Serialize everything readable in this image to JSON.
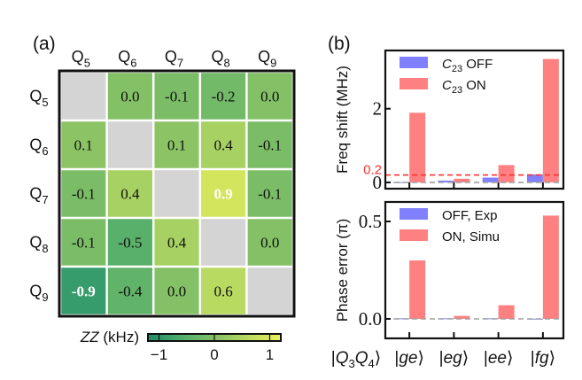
{
  "panel_labels": {
    "a": "(a)",
    "b": "(b)"
  },
  "chart_data": [
    {
      "type": "heatmap",
      "panel": "(a)",
      "title": "",
      "x_labels": [
        {
          "base": "Q",
          "sub": "5"
        },
        {
          "base": "Q",
          "sub": "6"
        },
        {
          "base": "Q",
          "sub": "7"
        },
        {
          "base": "Q",
          "sub": "8"
        },
        {
          "base": "Q",
          "sub": "9"
        }
      ],
      "y_labels": [
        {
          "base": "Q",
          "sub": "5"
        },
        {
          "base": "Q",
          "sub": "6"
        },
        {
          "base": "Q",
          "sub": "7"
        },
        {
          "base": "Q",
          "sub": "8"
        },
        {
          "base": "Q",
          "sub": "9"
        }
      ],
      "values": [
        [
          null,
          0.0,
          -0.1,
          -0.2,
          0.0
        ],
        [
          0.1,
          null,
          0.1,
          0.4,
          -0.1
        ],
        [
          -0.1,
          0.4,
          null,
          0.9,
          -0.1
        ],
        [
          -0.1,
          -0.5,
          0.4,
          null,
          0.0
        ],
        [
          -0.9,
          -0.4,
          0.0,
          0.6,
          null
        ]
      ],
      "cell_labels": [
        [
          "",
          "0.0",
          "-0.1",
          "-0.2",
          "0.0"
        ],
        [
          "0.1",
          "",
          "0.1",
          "0.4",
          "-0.1"
        ],
        [
          "-0.1",
          "0.4",
          "",
          "0.9",
          "-0.1"
        ],
        [
          "-0.1",
          "-0.5",
          "0.4",
          "",
          "0.0"
        ],
        [
          "-0.9",
          "-0.4",
          "0.0",
          "0.6",
          ""
        ]
      ],
      "colorbar": {
        "label": "ZZ (kHz)",
        "range": [
          -1.2,
          1.2
        ],
        "ticks": [
          -1,
          0,
          1
        ],
        "tick_labels": [
          "−1",
          "0",
          "1"
        ],
        "colors": [
          "#1f8a6a",
          "#50ad6b",
          "#83c066",
          "#b9da60",
          "#ecef5a"
        ],
        "diagonal_color": "#d4d4d4"
      }
    },
    {
      "type": "bar",
      "panel": "(b) top",
      "categories": [
        "|ge⟩",
        "|eg⟩",
        "|ee⟩",
        "|fg⟩"
      ],
      "series": [
        {
          "name": "C23 OFF",
          "name_base": "C",
          "name_sub": "23",
          "name_rest": " OFF",
          "color": "#8080ff",
          "values": [
            0.01,
            0.05,
            0.13,
            0.22
          ]
        },
        {
          "name": "C23 ON",
          "name_base": "C",
          "name_sub": "23",
          "name_rest": " ON",
          "color": "#ff8080",
          "values": [
            1.89,
            0.1,
            0.47,
            3.35
          ]
        }
      ],
      "xlabel": "",
      "ylabel": "Freq shift (MHz)",
      "ylim": [
        -0.17,
        3.58
      ],
      "yticks": [
        0,
        2
      ],
      "ytick_labels": [
        "0",
        "2"
      ],
      "reference_lines": [
        {
          "value": 0.2,
          "color": "#ff3030",
          "style": "dashed",
          "label": "0.2"
        },
        {
          "value": 0,
          "color": "#a0a0a0",
          "style": "dashed"
        }
      ],
      "legend": "top-left",
      "grid": false
    },
    {
      "type": "bar",
      "panel": "(b) bottom",
      "categories": [
        "|ge⟩",
        "|eg⟩",
        "|ee⟩",
        "|fg⟩"
      ],
      "category_axis_title": "|Q3Q4⟩",
      "series": [
        {
          "name": "OFF, Exp",
          "color": "#8080ff",
          "values": [
            0.003,
            0.003,
            0.003,
            0.001
          ]
        },
        {
          "name": "ON, Simu",
          "color": "#ff8080",
          "values": [
            0.3,
            0.015,
            0.07,
            0.53
          ]
        }
      ],
      "xlabel": "",
      "ylabel": "Phase error (π)",
      "ylim": [
        -0.1,
        0.6
      ],
      "yticks": [
        0.0,
        0.5
      ],
      "ytick_labels": [
        "0.0",
        "0.5"
      ],
      "reference_lines": [
        {
          "value": 0,
          "color": "#a0a0a0",
          "style": "dashed"
        }
      ],
      "legend": "top-left",
      "grid": false
    }
  ]
}
